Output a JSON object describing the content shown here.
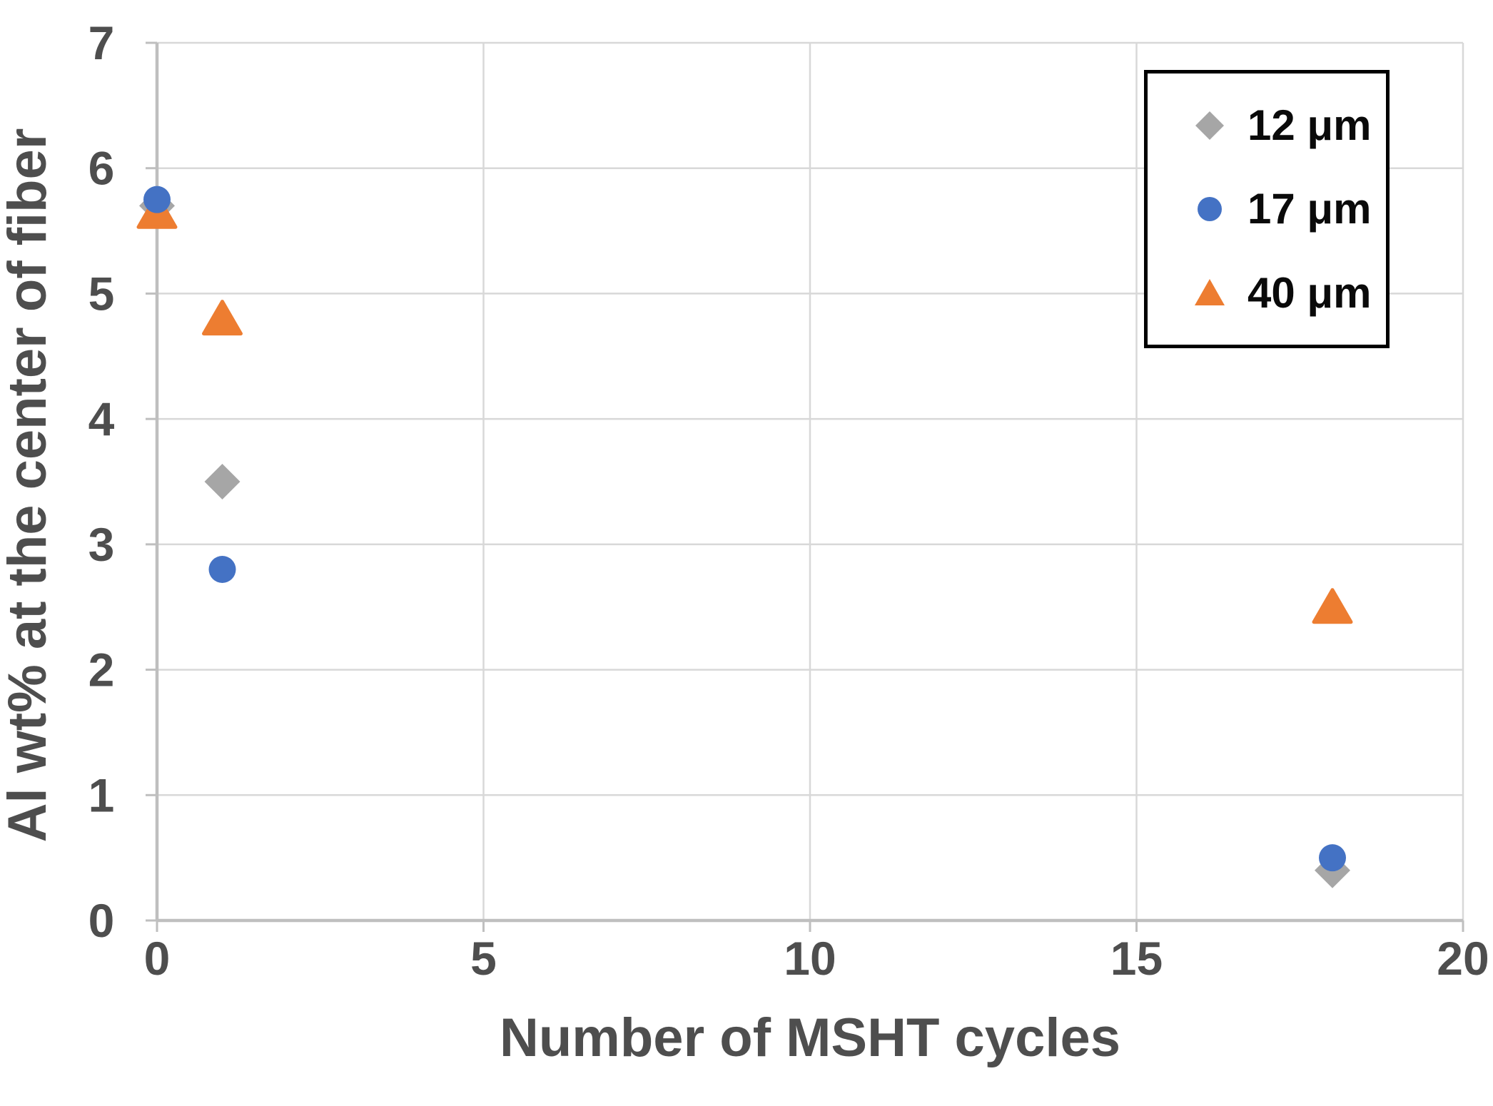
{
  "chart_data": {
    "type": "scatter",
    "title": "",
    "xlabel": "Number of MSHT cycles",
    "ylabel": "Al wt% at the center of fiber",
    "xlim": [
      0,
      20
    ],
    "ylim": [
      0,
      7
    ],
    "xticks": [
      0,
      5,
      10,
      15,
      20
    ],
    "yticks": [
      0,
      1,
      2,
      3,
      4,
      5,
      6,
      7
    ],
    "grid": true,
    "legend": {
      "position": "top-right-inside",
      "border": true
    },
    "series": [
      {
        "name": "12 μm",
        "marker": "diamond",
        "color": "#A6A6A6",
        "points": [
          [
            0,
            5.7
          ],
          [
            1,
            3.5
          ],
          [
            18,
            0.4
          ]
        ]
      },
      {
        "name": "17 μm",
        "marker": "circle",
        "color": "#4472C4",
        "points": [
          [
            0,
            5.75
          ],
          [
            1,
            2.8
          ],
          [
            18,
            0.5
          ]
        ]
      },
      {
        "name": "40 μm",
        "marker": "triangle",
        "color": "#ED7D31",
        "points": [
          [
            0,
            5.65
          ],
          [
            1,
            4.8
          ],
          [
            18,
            2.5
          ]
        ]
      }
    ]
  },
  "colors": {
    "background": "#FFFFFF",
    "gridline": "#D8D8D8",
    "axis_line": "#BFBFBF",
    "tick_text": "#4E4E4E",
    "axis_title_text": "#4E4E4E",
    "legend_text": "#0A0A0A",
    "legend_border": "#000000"
  }
}
